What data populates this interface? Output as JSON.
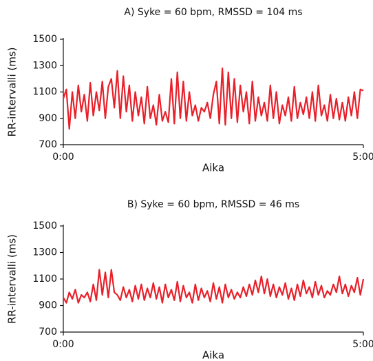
{
  "chart_data": [
    {
      "type": "line",
      "title": "A) Syke = 60 bpm, RMSSD = 104 ms",
      "xlabel": "Aika",
      "ylabel": "RR-intervalli (ms)",
      "color": "#e8202a",
      "x": [
        0,
        3,
        6,
        9,
        12,
        15,
        18,
        21,
        24,
        27,
        30,
        33,
        36,
        39,
        42,
        45,
        48,
        51,
        54,
        57,
        60,
        63,
        66,
        69,
        72,
        75,
        78,
        81,
        84,
        87,
        90,
        93,
        96,
        99,
        102,
        105,
        108,
        111,
        114,
        117,
        120,
        123,
        126,
        129,
        132,
        135,
        138,
        141,
        144,
        147,
        150,
        153,
        156,
        159,
        162,
        165,
        168,
        171,
        174,
        177,
        180,
        183,
        186,
        189,
        192,
        195,
        198,
        201,
        204,
        207,
        210,
        213,
        216,
        219,
        222,
        225,
        228,
        231,
        234,
        237,
        240,
        243,
        246,
        249,
        252,
        255,
        258,
        261,
        264,
        267,
        270,
        273,
        276,
        279,
        282,
        285,
        288,
        291,
        294,
        297,
        300
      ],
      "values": [
        1050,
        1120,
        820,
        1100,
        900,
        1150,
        950,
        1080,
        880,
        1170,
        920,
        1100,
        960,
        1180,
        900,
        1140,
        1200,
        980,
        1260,
        900,
        1220,
        950,
        1150,
        880,
        1100,
        920,
        1060,
        860,
        1140,
        900,
        1000,
        850,
        1080,
        880,
        950,
        870,
        1200,
        860,
        1250,
        900,
        1180,
        880,
        1100,
        920,
        1000,
        880,
        980,
        950,
        1020,
        900,
        1080,
        1180,
        860,
        1280,
        850,
        1250,
        900,
        1200,
        870,
        1150,
        950,
        1100,
        860,
        1180,
        880,
        1060,
        920,
        1020,
        880,
        1150,
        900,
        1100,
        860,
        1000,
        920,
        1060,
        880,
        1140,
        900,
        1020,
        930,
        1060,
        900,
        1100,
        880,
        1150,
        920,
        1000,
        880,
        1080,
        900,
        1050,
        890,
        1020,
        880,
        1060,
        920,
        1100,
        900,
        1120,
        1110
      ],
      "xlim": [
        0,
        300
      ],
      "xticks": [
        {
          "value": 0,
          "label": "0:00"
        },
        {
          "value": 300,
          "label": "5:00"
        }
      ],
      "ylim": [
        700,
        1500
      ],
      "yticks": [
        700,
        900,
        1100,
        1300,
        1500
      ]
    },
    {
      "type": "line",
      "title": "B) Syke = 60 bpm, RMSSD = 46 ms",
      "xlabel": "Aika",
      "ylabel": "RR-intervalli (ms)",
      "color": "#e8202a",
      "x": [
        0,
        3,
        6,
        9,
        12,
        15,
        18,
        21,
        24,
        27,
        30,
        33,
        36,
        39,
        42,
        45,
        48,
        51,
        54,
        57,
        60,
        63,
        66,
        69,
        72,
        75,
        78,
        81,
        84,
        87,
        90,
        93,
        96,
        99,
        102,
        105,
        108,
        111,
        114,
        117,
        120,
        123,
        126,
        129,
        132,
        135,
        138,
        141,
        144,
        147,
        150,
        153,
        156,
        159,
        162,
        165,
        168,
        171,
        174,
        177,
        180,
        183,
        186,
        189,
        192,
        195,
        198,
        201,
        204,
        207,
        210,
        213,
        216,
        219,
        222,
        225,
        228,
        231,
        234,
        237,
        240,
        243,
        246,
        249,
        252,
        255,
        258,
        261,
        264,
        267,
        270,
        273,
        276,
        279,
        282,
        285,
        288,
        291,
        294,
        297,
        300
      ],
      "values": [
        960,
        920,
        1000,
        950,
        1020,
        920,
        980,
        960,
        1000,
        930,
        1060,
        940,
        1170,
        980,
        1150,
        960,
        1170,
        1000,
        980,
        940,
        1040,
        960,
        1020,
        930,
        1050,
        950,
        1060,
        940,
        1030,
        960,
        1070,
        950,
        1040,
        920,
        1060,
        960,
        1020,
        940,
        1080,
        930,
        1050,
        960,
        1000,
        920,
        1060,
        940,
        1030,
        960,
        1010,
        930,
        1070,
        950,
        1040,
        920,
        1060,
        960,
        1020,
        950,
        1000,
        960,
        1040,
        970,
        1060,
        980,
        1090,
        1000,
        1120,
        990,
        1100,
        970,
        1060,
        960,
        1040,
        980,
        1070,
        950,
        1030,
        940,
        1060,
        970,
        1090,
        990,
        1040,
        960,
        1080,
        980,
        1050,
        960,
        1010,
        980,
        1060,
        1000,
        1120,
        990,
        1060,
        970,
        1050,
        1000,
        1110,
        980,
        1100
      ],
      "xlim": [
        0,
        300
      ],
      "xticks": [
        {
          "value": 0,
          "label": "0:00"
        },
        {
          "value": 300,
          "label": "5:00"
        }
      ],
      "ylim": [
        700,
        1500
      ],
      "yticks": [
        700,
        900,
        1100,
        1300,
        1500
      ]
    }
  ]
}
